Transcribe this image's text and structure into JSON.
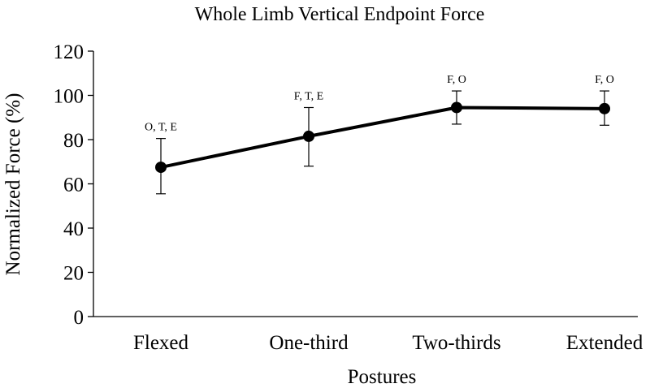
{
  "chart_data": {
    "type": "line",
    "title": "Whole Limb Vertical Endpoint Force",
    "xlabel": "Postures",
    "ylabel": "Normalized Force (%)",
    "ylim": [
      0,
      120
    ],
    "yticks": [
      0,
      20,
      40,
      60,
      80,
      100,
      120
    ],
    "grid": false,
    "legend": "none",
    "categories": [
      "Flexed",
      "One-third",
      "Two-thirds",
      "Extended"
    ],
    "series": [
      {
        "values": [
          67.5,
          81.5,
          94.5,
          94
        ],
        "error_upper": [
          80.5,
          94.5,
          102,
          102
        ],
        "error_lower": [
          55.5,
          68,
          87,
          86.5
        ],
        "annotations": [
          "O, T, E",
          "F, T, E",
          "F, O",
          "F, O"
        ],
        "color": "#000000"
      }
    ]
  }
}
